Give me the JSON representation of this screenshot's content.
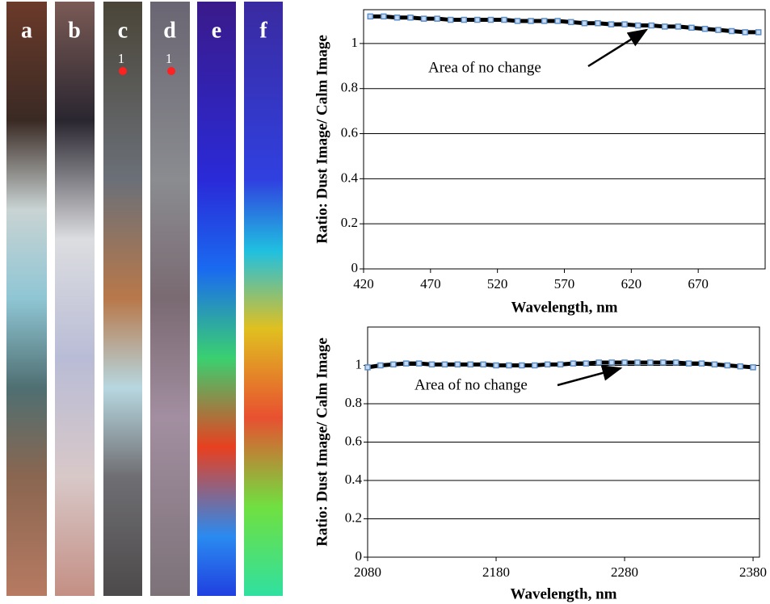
{
  "panels": {
    "labels": [
      "a",
      "b",
      "c",
      "d",
      "e",
      "f"
    ],
    "markers": [
      "1",
      "1"
    ]
  },
  "chart_data": [
    {
      "type": "line",
      "ylabel": "Ratio: Dust Image/ Calm Image",
      "xlabel": "Wavelength, nm",
      "annotations": [
        "Area of no change"
      ],
      "xlim": [
        420,
        720
      ],
      "xticks": [
        420,
        470,
        520,
        570,
        620,
        670
      ],
      "ylim": [
        0,
        1.15
      ],
      "yticks": [
        0,
        0.2,
        0.4,
        0.6,
        0.8,
        1
      ],
      "grid": true,
      "color": "#000000",
      "marker_color": "#5b8fc9",
      "x": [
        425,
        435,
        445,
        455,
        465,
        475,
        485,
        495,
        505,
        515,
        525,
        535,
        545,
        555,
        565,
        575,
        585,
        595,
        605,
        615,
        625,
        635,
        645,
        655,
        665,
        675,
        685,
        695,
        705,
        715
      ],
      "values": [
        1.12,
        1.12,
        1.115,
        1.115,
        1.11,
        1.11,
        1.105,
        1.105,
        1.105,
        1.105,
        1.105,
        1.1,
        1.1,
        1.1,
        1.1,
        1.095,
        1.09,
        1.09,
        1.085,
        1.085,
        1.08,
        1.08,
        1.075,
        1.075,
        1.07,
        1.065,
        1.06,
        1.055,
        1.05,
        1.05
      ]
    },
    {
      "type": "line",
      "ylabel": "Ratio: Dust Image/ Calm Image",
      "xlabel": "Wavelength, nm",
      "annotations": [
        "Area of no change"
      ],
      "xlim": [
        2080,
        2385
      ],
      "xticks": [
        2080,
        2180,
        2280,
        2380
      ],
      "ylim": [
        0,
        1.2
      ],
      "yticks": [
        0,
        0.2,
        0.4,
        0.6,
        0.8,
        1
      ],
      "grid": true,
      "color": "#000000",
      "marker_color": "#5b8fc9",
      "x": [
        2080,
        2090,
        2100,
        2110,
        2120,
        2130,
        2140,
        2150,
        2160,
        2170,
        2180,
        2190,
        2200,
        2210,
        2220,
        2230,
        2240,
        2250,
        2260,
        2270,
        2280,
        2290,
        2300,
        2310,
        2320,
        2330,
        2340,
        2350,
        2360,
        2370,
        2380
      ],
      "values": [
        0.99,
        1,
        1.005,
        1.01,
        1.01,
        1.005,
        1.005,
        1.005,
        1.005,
        1.005,
        1,
        1,
        1,
        1,
        1.005,
        1.005,
        1.01,
        1.01,
        1.015,
        1.015,
        1.015,
        1.015,
        1.015,
        1.015,
        1.015,
        1.01,
        1.01,
        1.005,
        1,
        0.995,
        0.99
      ]
    }
  ]
}
